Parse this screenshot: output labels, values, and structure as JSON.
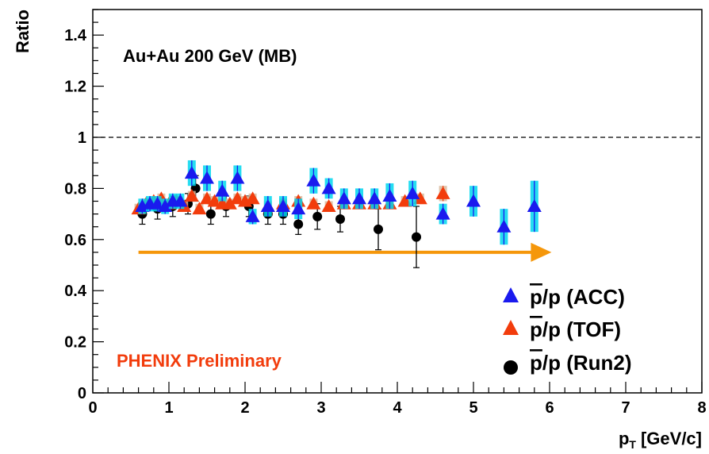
{
  "chart_data": {
    "type": "scatter",
    "title": "",
    "ylabel": "Ratio",
    "xlabel": {
      "main": "p",
      "sub": "T",
      "unit": "[GeV/c]"
    },
    "xlim": [
      0,
      8
    ],
    "ylim": [
      0,
      1.5
    ],
    "xticks": [
      "0",
      "1",
      "2",
      "3",
      "4",
      "5",
      "6",
      "7",
      "8"
    ],
    "yticks": [
      "0",
      "0.2",
      "0.4",
      "0.6",
      "0.8",
      "1",
      "1.2",
      "1.4"
    ],
    "reference_line_y": 1.0,
    "annotations": {
      "system": "Au+Au 200 GeV (MB)",
      "preliminary": "PHENIX Preliminary"
    },
    "legend_placement": "bottom-right",
    "arrow": {
      "x_start": 0.6,
      "x_end": 5.9,
      "y": 0.55
    },
    "series": [
      {
        "name": "p̄/p (ACC)",
        "legend": {
          "pbar": "p",
          "rest": "/p (ACC)"
        },
        "marker": "triangle",
        "color": "#1a1aee",
        "syst_color": "#00d7ee",
        "x": [
          0.65,
          0.75,
          0.85,
          0.95,
          1.05,
          1.15,
          1.3,
          1.5,
          1.7,
          1.9,
          2.1,
          2.3,
          2.5,
          2.7,
          2.9,
          3.1,
          3.3,
          3.5,
          3.7,
          3.9,
          4.2,
          4.6,
          5.0,
          5.4,
          5.8
        ],
        "y": [
          0.73,
          0.74,
          0.74,
          0.73,
          0.75,
          0.75,
          0.86,
          0.84,
          0.79,
          0.84,
          0.69,
          0.73,
          0.73,
          0.72,
          0.83,
          0.8,
          0.76,
          0.76,
          0.76,
          0.77,
          0.78,
          0.7,
          0.75,
          0.65,
          0.73
        ],
        "err": [
          0.03,
          0.03,
          0.03,
          0.03,
          0.03,
          0.03,
          0.05,
          0.05,
          0.04,
          0.05,
          0.03,
          0.04,
          0.04,
          0.04,
          0.05,
          0.04,
          0.04,
          0.04,
          0.04,
          0.05,
          0.05,
          0.04,
          0.06,
          0.07,
          0.1
        ]
      },
      {
        "name": "p̄/p (TOF)",
        "legend": {
          "pbar": "p",
          "rest": "/p (TOF)"
        },
        "marker": "triangle",
        "color": "#f23c0c",
        "syst_color": "#d9b99b",
        "x": [
          0.6,
          0.7,
          0.8,
          0.9,
          1.0,
          1.1,
          1.2,
          1.3,
          1.4,
          1.5,
          1.6,
          1.7,
          1.8,
          1.9,
          2.0,
          2.1,
          2.3,
          2.5,
          2.7,
          2.9,
          3.1,
          3.3,
          3.5,
          3.7,
          3.9,
          4.1,
          4.3,
          4.6
        ],
        "y": [
          0.72,
          0.74,
          0.75,
          0.76,
          0.74,
          0.75,
          0.73,
          0.77,
          0.72,
          0.76,
          0.75,
          0.74,
          0.74,
          0.76,
          0.75,
          0.76,
          0.73,
          0.74,
          0.75,
          0.74,
          0.73,
          0.74,
          0.74,
          0.74,
          0.74,
          0.75,
          0.76,
          0.78
        ],
        "err": [
          0.02,
          0.02,
          0.02,
          0.02,
          0.02,
          0.02,
          0.02,
          0.02,
          0.02,
          0.02,
          0.02,
          0.02,
          0.02,
          0.02,
          0.02,
          0.02,
          0.02,
          0.02,
          0.02,
          0.02,
          0.02,
          0.02,
          0.02,
          0.02,
          0.02,
          0.02,
          0.02,
          0.03
        ]
      },
      {
        "name": "p̄/p (Run2)",
        "legend": {
          "pbar": "p",
          "rest": "/p (Run2)"
        },
        "marker": "circle",
        "color": "#000000",
        "x": [
          0.65,
          0.85,
          1.05,
          1.25,
          1.35,
          1.55,
          1.75,
          2.05,
          2.3,
          2.5,
          2.7,
          2.95,
          3.25,
          3.75,
          4.25
        ],
        "y": [
          0.7,
          0.72,
          0.73,
          0.74,
          0.8,
          0.7,
          0.73,
          0.73,
          0.7,
          0.7,
          0.66,
          0.69,
          0.68,
          0.64,
          0.61
        ],
        "err": [
          0.04,
          0.04,
          0.04,
          0.04,
          0.05,
          0.04,
          0.04,
          0.04,
          0.04,
          0.04,
          0.04,
          0.05,
          0.05,
          0.08,
          0.12
        ]
      }
    ]
  }
}
